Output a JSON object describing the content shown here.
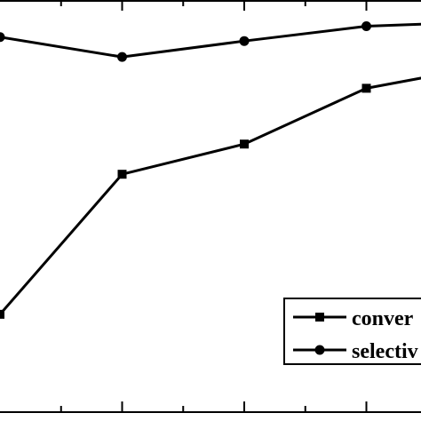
{
  "chart_data": {
    "type": "line",
    "x": [
      0,
      1,
      2,
      3,
      4
    ],
    "xlim": [
      0,
      4.5
    ],
    "ylim": [
      0,
      100
    ],
    "series": [
      {
        "name": "conver",
        "marker": "square",
        "values": [
          43.0,
          67.6,
          72.9,
          82.7,
          86.7
        ]
      },
      {
        "name": "selectiv",
        "marker": "circle",
        "values": [
          91.7,
          88.2,
          91.0,
          93.6,
          94.4
        ]
      }
    ],
    "legend_position": "bottom-right",
    "grid": false,
    "colors": {
      "line": "#000000",
      "background": "#ffffff"
    }
  }
}
